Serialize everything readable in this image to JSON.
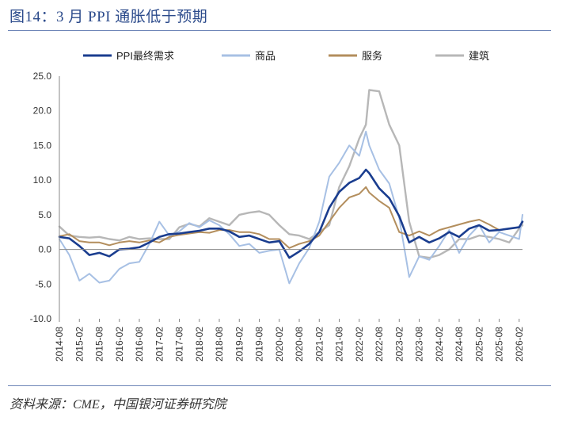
{
  "figure_title": "图14：3 月 PPI 通胀低于预期",
  "source_note": "资料来源：CME，中国银河证券研究院",
  "chart_data": {
    "type": "line",
    "title": "3 月 PPI 通胀低于预期",
    "xlabel": "",
    "ylabel": "",
    "ylim": [
      -10,
      25
    ],
    "yticks": [
      25,
      20,
      15,
      10,
      5,
      0,
      -5,
      -10
    ],
    "ytick_labels": [
      "25.0",
      "20.0",
      "15.0",
      "10.0",
      "5.0",
      "0.0",
      "-5.0",
      "-10.0"
    ],
    "xticks": [
      "2014-08",
      "2015-02",
      "2015-08",
      "2016-02",
      "2016-08",
      "2017-02",
      "2017-08",
      "2018-02",
      "2018-08",
      "2019-02",
      "2019-08",
      "2020-02",
      "2020-08",
      "2021-02",
      "2021-08",
      "2022-02",
      "2022-08",
      "2023-02",
      "2023-08",
      "2024-02",
      "2024-08",
      "2025-02",
      "2025-08",
      "2026-02"
    ],
    "grid": false,
    "legend_position": "top",
    "series": [
      {
        "name": "PPI最终需求",
        "color": "#1a3d8f",
        "width": 2.6,
        "points": [
          [
            "2014-08",
            1.8
          ],
          [
            "2014-11",
            1.6
          ],
          [
            "2015-02",
            0.5
          ],
          [
            "2015-05",
            -0.8
          ],
          [
            "2015-08",
            -0.5
          ],
          [
            "2015-11",
            -1.0
          ],
          [
            "2016-02",
            0.0
          ],
          [
            "2016-05",
            0.1
          ],
          [
            "2016-08",
            0.3
          ],
          [
            "2016-11",
            1.0
          ],
          [
            "2017-02",
            1.8
          ],
          [
            "2017-05",
            2.2
          ],
          [
            "2017-08",
            2.3
          ],
          [
            "2017-11",
            2.5
          ],
          [
            "2018-02",
            2.7
          ],
          [
            "2018-05",
            3.0
          ],
          [
            "2018-08",
            3.0
          ],
          [
            "2018-11",
            2.6
          ],
          [
            "2019-02",
            1.8
          ],
          [
            "2019-05",
            2.0
          ],
          [
            "2019-08",
            1.5
          ],
          [
            "2019-11",
            1.0
          ],
          [
            "2020-02",
            1.2
          ],
          [
            "2020-05",
            -1.2
          ],
          [
            "2020-08",
            -0.3
          ],
          [
            "2020-11",
            0.8
          ],
          [
            "2021-02",
            2.5
          ],
          [
            "2021-05",
            6.0
          ],
          [
            "2021-08",
            8.3
          ],
          [
            "2021-11",
            9.6
          ],
          [
            "2022-02",
            10.3
          ],
          [
            "2022-04",
            11.5
          ],
          [
            "2022-05",
            11.0
          ],
          [
            "2022-08",
            8.8
          ],
          [
            "2022-11",
            7.4
          ],
          [
            "2023-02",
            4.8
          ],
          [
            "2023-05",
            1.0
          ],
          [
            "2023-08",
            1.8
          ],
          [
            "2023-11",
            1.0
          ],
          [
            "2024-02",
            1.6
          ],
          [
            "2024-05",
            2.5
          ],
          [
            "2024-08",
            1.8
          ],
          [
            "2024-11",
            3.0
          ],
          [
            "2025-02",
            3.5
          ],
          [
            "2025-05",
            2.7
          ],
          [
            "2025-08",
            2.8
          ],
          [
            "2025-11",
            3.0
          ],
          [
            "2026-02",
            3.2
          ],
          [
            "2026-03",
            4.0
          ]
        ]
      },
      {
        "name": "商品",
        "color": "#a7c0e4",
        "width": 2.0,
        "points": [
          [
            "2014-08",
            1.5
          ],
          [
            "2014-11",
            -0.8
          ],
          [
            "2015-02",
            -4.5
          ],
          [
            "2015-05",
            -3.5
          ],
          [
            "2015-08",
            -4.8
          ],
          [
            "2015-11",
            -4.5
          ],
          [
            "2016-02",
            -2.8
          ],
          [
            "2016-05",
            -2.0
          ],
          [
            "2016-08",
            -1.8
          ],
          [
            "2016-11",
            0.8
          ],
          [
            "2017-02",
            4.0
          ],
          [
            "2017-05",
            2.0
          ],
          [
            "2017-08",
            2.6
          ],
          [
            "2017-11",
            3.8
          ],
          [
            "2018-02",
            3.2
          ],
          [
            "2018-05",
            4.2
          ],
          [
            "2018-08",
            3.5
          ],
          [
            "2018-11",
            2.2
          ],
          [
            "2019-02",
            0.5
          ],
          [
            "2019-05",
            0.8
          ],
          [
            "2019-08",
            -0.5
          ],
          [
            "2019-11",
            -0.2
          ],
          [
            "2020-02",
            0.0
          ],
          [
            "2020-05",
            -4.9
          ],
          [
            "2020-08",
            -2.0
          ],
          [
            "2020-11",
            0.2
          ],
          [
            "2021-02",
            4.0
          ],
          [
            "2021-05",
            10.5
          ],
          [
            "2021-08",
            12.5
          ],
          [
            "2021-11",
            15.0
          ],
          [
            "2022-02",
            13.5
          ],
          [
            "2022-04",
            17.0
          ],
          [
            "2022-05",
            15.0
          ],
          [
            "2022-08",
            11.5
          ],
          [
            "2022-11",
            9.5
          ],
          [
            "2023-02",
            4.5
          ],
          [
            "2023-05",
            -4.0
          ],
          [
            "2023-08",
            -1.0
          ],
          [
            "2023-11",
            -1.5
          ],
          [
            "2024-02",
            0.5
          ],
          [
            "2024-05",
            2.8
          ],
          [
            "2024-08",
            -0.5
          ],
          [
            "2024-11",
            2.0
          ],
          [
            "2025-02",
            3.5
          ],
          [
            "2025-05",
            1.0
          ],
          [
            "2025-08",
            2.5
          ],
          [
            "2025-11",
            2.0
          ],
          [
            "2026-02",
            1.5
          ],
          [
            "2026-03",
            5.0
          ]
        ]
      },
      {
        "name": "服务",
        "color": "#b38e5d",
        "width": 2.0,
        "points": [
          [
            "2014-08",
            1.9
          ],
          [
            "2014-11",
            2.2
          ],
          [
            "2015-02",
            1.2
          ],
          [
            "2015-05",
            1.0
          ],
          [
            "2015-08",
            1.0
          ],
          [
            "2015-11",
            0.6
          ],
          [
            "2016-02",
            1.0
          ],
          [
            "2016-05",
            1.2
          ],
          [
            "2016-08",
            1.0
          ],
          [
            "2016-11",
            1.3
          ],
          [
            "2017-02",
            1.0
          ],
          [
            "2017-05",
            1.8
          ],
          [
            "2017-08",
            2.1
          ],
          [
            "2017-11",
            2.3
          ],
          [
            "2018-02",
            2.5
          ],
          [
            "2018-05",
            2.4
          ],
          [
            "2018-08",
            2.8
          ],
          [
            "2018-11",
            2.8
          ],
          [
            "2019-02",
            2.5
          ],
          [
            "2019-05",
            2.5
          ],
          [
            "2019-08",
            2.2
          ],
          [
            "2019-11",
            1.5
          ],
          [
            "2020-02",
            1.5
          ],
          [
            "2020-05",
            0.2
          ],
          [
            "2020-08",
            0.8
          ],
          [
            "2020-11",
            1.2
          ],
          [
            "2021-02",
            2.0
          ],
          [
            "2021-05",
            4.0
          ],
          [
            "2021-08",
            6.0
          ],
          [
            "2021-11",
            7.5
          ],
          [
            "2022-02",
            8.0
          ],
          [
            "2022-04",
            9.0
          ],
          [
            "2022-05",
            8.2
          ],
          [
            "2022-08",
            7.0
          ],
          [
            "2022-11",
            6.0
          ],
          [
            "2023-02",
            2.5
          ],
          [
            "2023-05",
            2.0
          ],
          [
            "2023-08",
            2.6
          ],
          [
            "2023-11",
            2.0
          ],
          [
            "2024-02",
            2.8
          ],
          [
            "2024-05",
            3.2
          ],
          [
            "2024-08",
            3.6
          ],
          [
            "2024-11",
            4.0
          ],
          [
            "2025-02",
            4.3
          ],
          [
            "2025-05",
            3.6
          ],
          [
            "2025-08",
            2.8
          ],
          [
            "2025-11",
            3.0
          ],
          [
            "2026-02",
            3.2
          ],
          [
            "2026-03",
            3.9
          ]
        ]
      },
      {
        "name": "建筑",
        "color": "#b7b7b7",
        "width": 2.4,
        "points": [
          [
            "2014-08",
            3.3
          ],
          [
            "2014-11",
            2.0
          ],
          [
            "2015-02",
            1.8
          ],
          [
            "2015-05",
            1.7
          ],
          [
            "2015-08",
            1.8
          ],
          [
            "2015-11",
            1.5
          ],
          [
            "2016-02",
            1.3
          ],
          [
            "2016-05",
            1.8
          ],
          [
            "2016-08",
            1.5
          ],
          [
            "2016-11",
            1.6
          ],
          [
            "2017-02",
            1.5
          ],
          [
            "2017-05",
            1.5
          ],
          [
            "2017-08",
            3.2
          ],
          [
            "2017-11",
            3.7
          ],
          [
            "2018-02",
            3.3
          ],
          [
            "2018-05",
            4.5
          ],
          [
            "2018-08",
            4.0
          ],
          [
            "2018-11",
            3.5
          ],
          [
            "2019-02",
            5.0
          ],
          [
            "2019-05",
            5.3
          ],
          [
            "2019-08",
            5.5
          ],
          [
            "2019-11",
            5.0
          ],
          [
            "2020-02",
            3.5
          ],
          [
            "2020-05",
            2.2
          ],
          [
            "2020-08",
            2.0
          ],
          [
            "2020-11",
            1.5
          ],
          [
            "2021-02",
            2.5
          ],
          [
            "2021-05",
            3.5
          ],
          [
            "2021-08",
            9.0
          ],
          [
            "2021-11",
            12.0
          ],
          [
            "2022-02",
            16.0
          ],
          [
            "2022-04",
            18.0
          ],
          [
            "2022-05",
            23.0
          ],
          [
            "2022-08",
            22.8
          ],
          [
            "2022-11",
            18.0
          ],
          [
            "2023-02",
            15.0
          ],
          [
            "2023-05",
            4.0
          ],
          [
            "2023-08",
            -1.0
          ],
          [
            "2023-11",
            -1.2
          ],
          [
            "2024-02",
            -0.8
          ],
          [
            "2024-05",
            0.0
          ],
          [
            "2024-08",
            1.5
          ],
          [
            "2024-11",
            1.5
          ],
          [
            "2025-02",
            2.0
          ],
          [
            "2025-05",
            1.8
          ],
          [
            "2025-08",
            1.5
          ],
          [
            "2025-11",
            1.0
          ],
          [
            "2026-02",
            3.0
          ],
          [
            "2026-03",
            3.5
          ]
        ]
      }
    ]
  }
}
